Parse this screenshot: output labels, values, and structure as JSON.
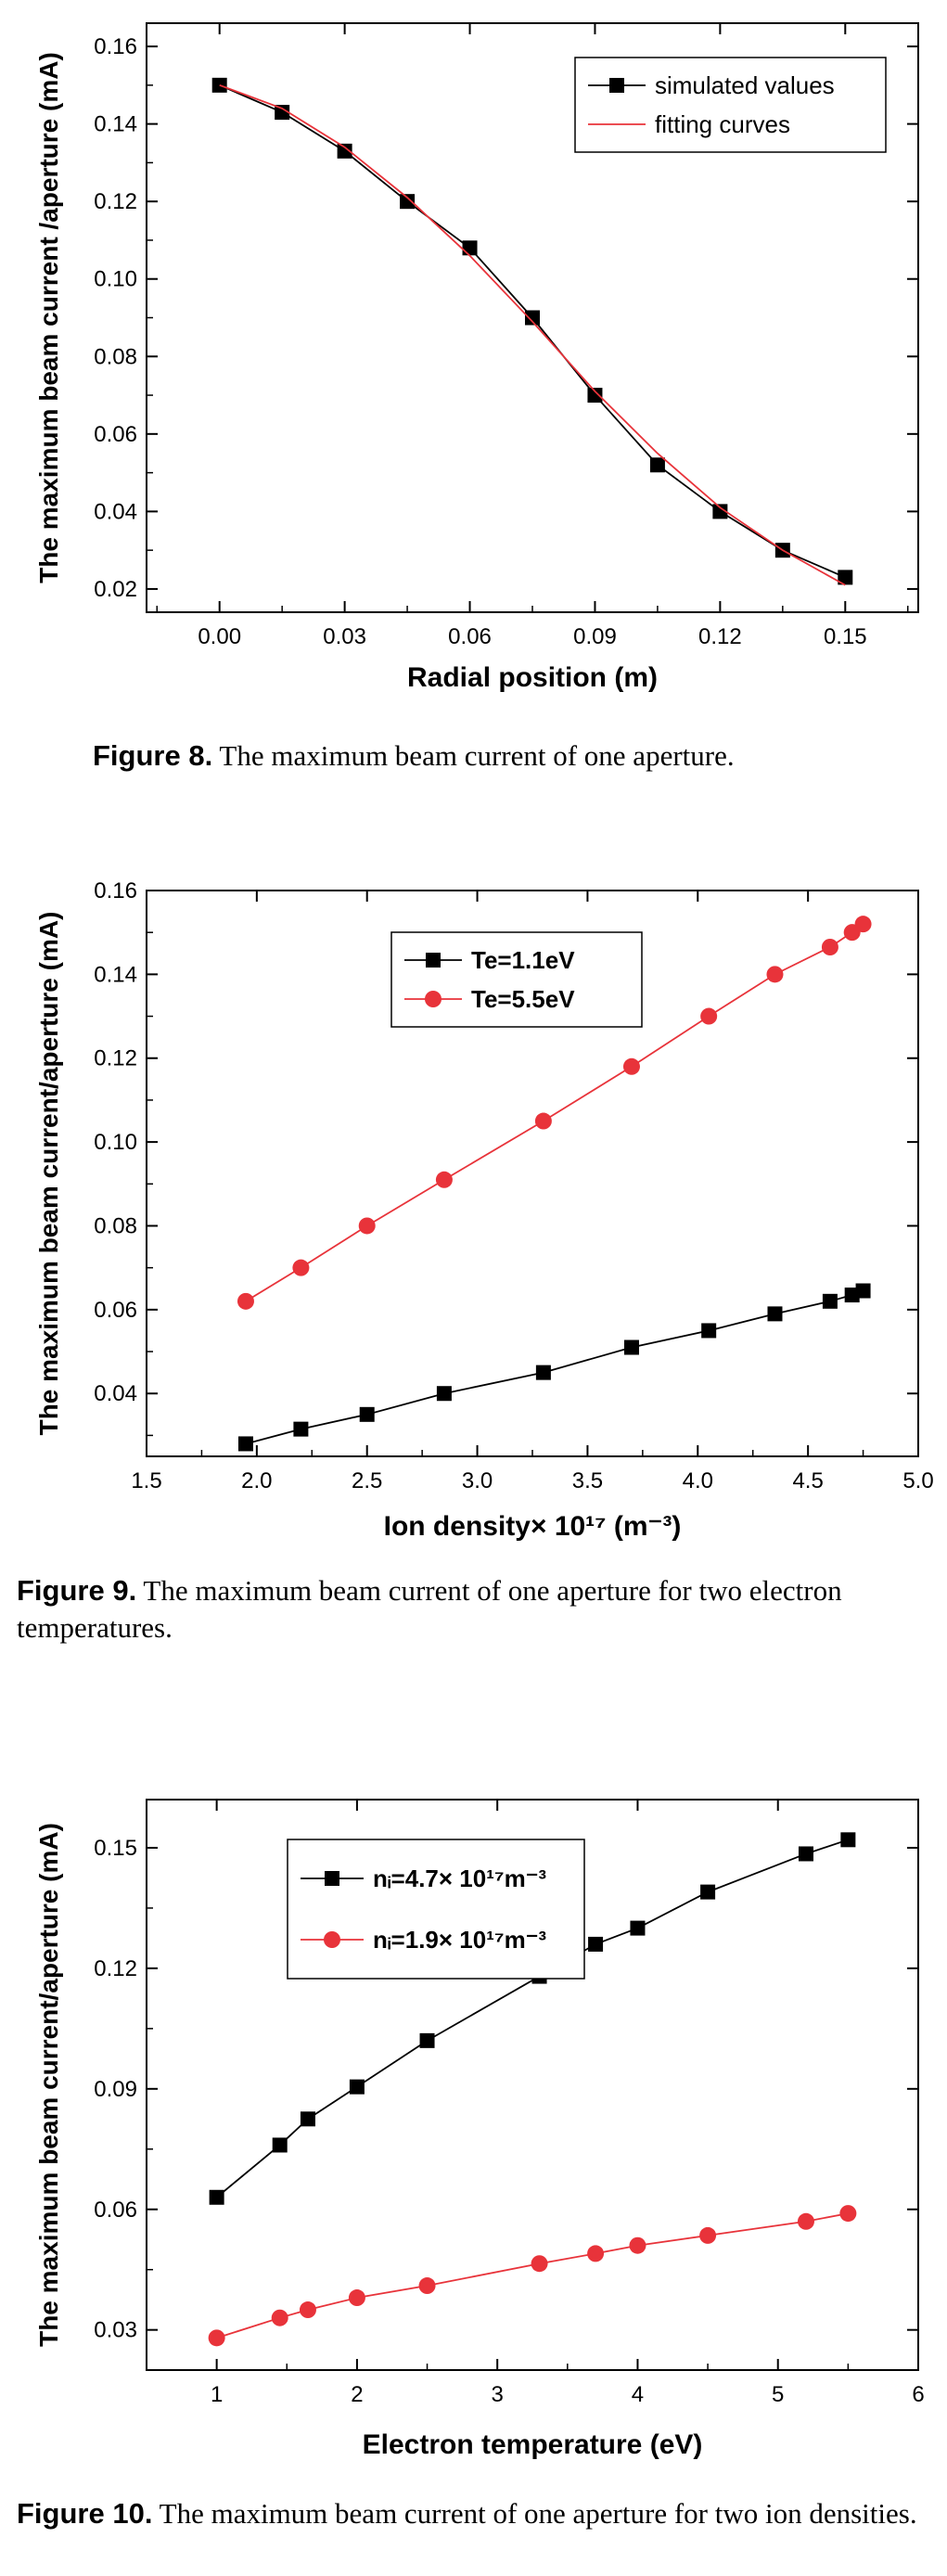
{
  "figures": [
    {
      "caption_label": "Figure 8.",
      "caption_text": "The maximum beam current of one aperture.",
      "chart_data": {
        "type": "line",
        "xlabel": "Radial position (m)",
        "ylabel": "The maximum beam current /aperture (mA)",
        "xlim": [
          -0.0175,
          0.1675
        ],
        "ylim": [
          0.014,
          0.166
        ],
        "xticks": [
          "0.00",
          "0.03",
          "0.06",
          "0.09",
          "0.12",
          "0.15"
        ],
        "yticks": [
          "0.02",
          "0.04",
          "0.06",
          "0.08",
          "0.10",
          "0.12",
          "0.14",
          "0.16"
        ],
        "legend_position": "top-right",
        "series": [
          {
            "name": "simulated values",
            "color": "#000000",
            "marker": "square",
            "x": [
              0.0,
              0.015,
              0.03,
              0.045,
              0.06,
              0.075,
              0.09,
              0.105,
              0.12,
              0.135,
              0.15
            ],
            "y": [
              0.15,
              0.143,
              0.133,
              0.12,
              0.108,
              0.09,
              0.07,
              0.052,
              0.04,
              0.03,
              0.023
            ]
          },
          {
            "name": "fitting curves",
            "color": "#e8333a",
            "marker": "none",
            "x": [
              0.0,
              0.015,
              0.03,
              0.045,
              0.06,
              0.075,
              0.09,
              0.105,
              0.12,
              0.135,
              0.15
            ],
            "y": [
              0.15,
              0.144,
              0.134,
              0.121,
              0.106,
              0.089,
              0.071,
              0.055,
              0.041,
              0.03,
              0.021
            ]
          }
        ]
      }
    },
    {
      "caption_label": "Figure 9.",
      "caption_text": "The maximum beam current of one aperture for two electron temperatures.",
      "chart_data": {
        "type": "line",
        "xlabel": "Ion density× 10¹⁷ (m⁻³)",
        "ylabel": "The maximum beam current/aperture (mA)",
        "xlim": [
          1.5,
          5.0
        ],
        "ylim": [
          0.025,
          0.16
        ],
        "xticks": [
          "1.5",
          "2.0",
          "2.5",
          "3.0",
          "3.5",
          "4.0",
          "4.5",
          "5.0"
        ],
        "yticks": [
          "0.04",
          "0.06",
          "0.08",
          "0.10",
          "0.12",
          "0.14",
          "0.16"
        ],
        "legend_position": "top-center",
        "series": [
          {
            "name": "Te=1.1eV",
            "color": "#000000",
            "marker": "square",
            "x": [
              1.95,
              2.2,
              2.5,
              2.85,
              3.3,
              3.7,
              4.05,
              4.35,
              4.6,
              4.7,
              4.75
            ],
            "y": [
              0.028,
              0.0315,
              0.035,
              0.04,
              0.045,
              0.051,
              0.055,
              0.059,
              0.062,
              0.0635,
              0.0645
            ]
          },
          {
            "name": "Te=5.5eV",
            "color": "#e8333a",
            "marker": "circle",
            "x": [
              1.95,
              2.2,
              2.5,
              2.85,
              3.3,
              3.7,
              4.05,
              4.35,
              4.6,
              4.7,
              4.75
            ],
            "y": [
              0.062,
              0.07,
              0.08,
              0.091,
              0.105,
              0.118,
              0.13,
              0.14,
              0.1465,
              0.15,
              0.152
            ]
          }
        ]
      }
    },
    {
      "caption_label": "Figure 10.",
      "caption_text": "The maximum beam current of one aperture for two ion densities.",
      "chart_data": {
        "type": "line",
        "xlabel": "Electron temperature (eV)",
        "ylabel": "The maximum beam current/aperture (mA)",
        "xlim": [
          0.5,
          6.0
        ],
        "ylim": [
          0.02,
          0.162
        ],
        "xticks": [
          "1",
          "2",
          "3",
          "4",
          "5",
          "6"
        ],
        "yticks": [
          "0.03",
          "0.06",
          "0.09",
          "0.12",
          "0.15"
        ],
        "legend_position": "top-left",
        "series": [
          {
            "name": "nᵢ=4.7× 10¹⁷m⁻³",
            "color": "#000000",
            "marker": "square",
            "x": [
              1.0,
              1.45,
              1.65,
              2.0,
              2.5,
              3.3,
              3.7,
              4.0,
              4.5,
              5.2,
              5.5
            ],
            "y": [
              0.063,
              0.076,
              0.0825,
              0.0905,
              0.102,
              0.118,
              0.126,
              0.13,
              0.139,
              0.1485,
              0.152
            ]
          },
          {
            "name": "nᵢ=1.9× 10¹⁷m⁻³",
            "color": "#e8333a",
            "marker": "circle",
            "x": [
              1.0,
              1.45,
              1.65,
              2.0,
              2.5,
              3.3,
              3.7,
              4.0,
              4.5,
              5.2,
              5.5
            ],
            "y": [
              0.028,
              0.033,
              0.035,
              0.038,
              0.041,
              0.0465,
              0.049,
              0.051,
              0.0535,
              0.057,
              0.059
            ]
          }
        ]
      }
    }
  ]
}
